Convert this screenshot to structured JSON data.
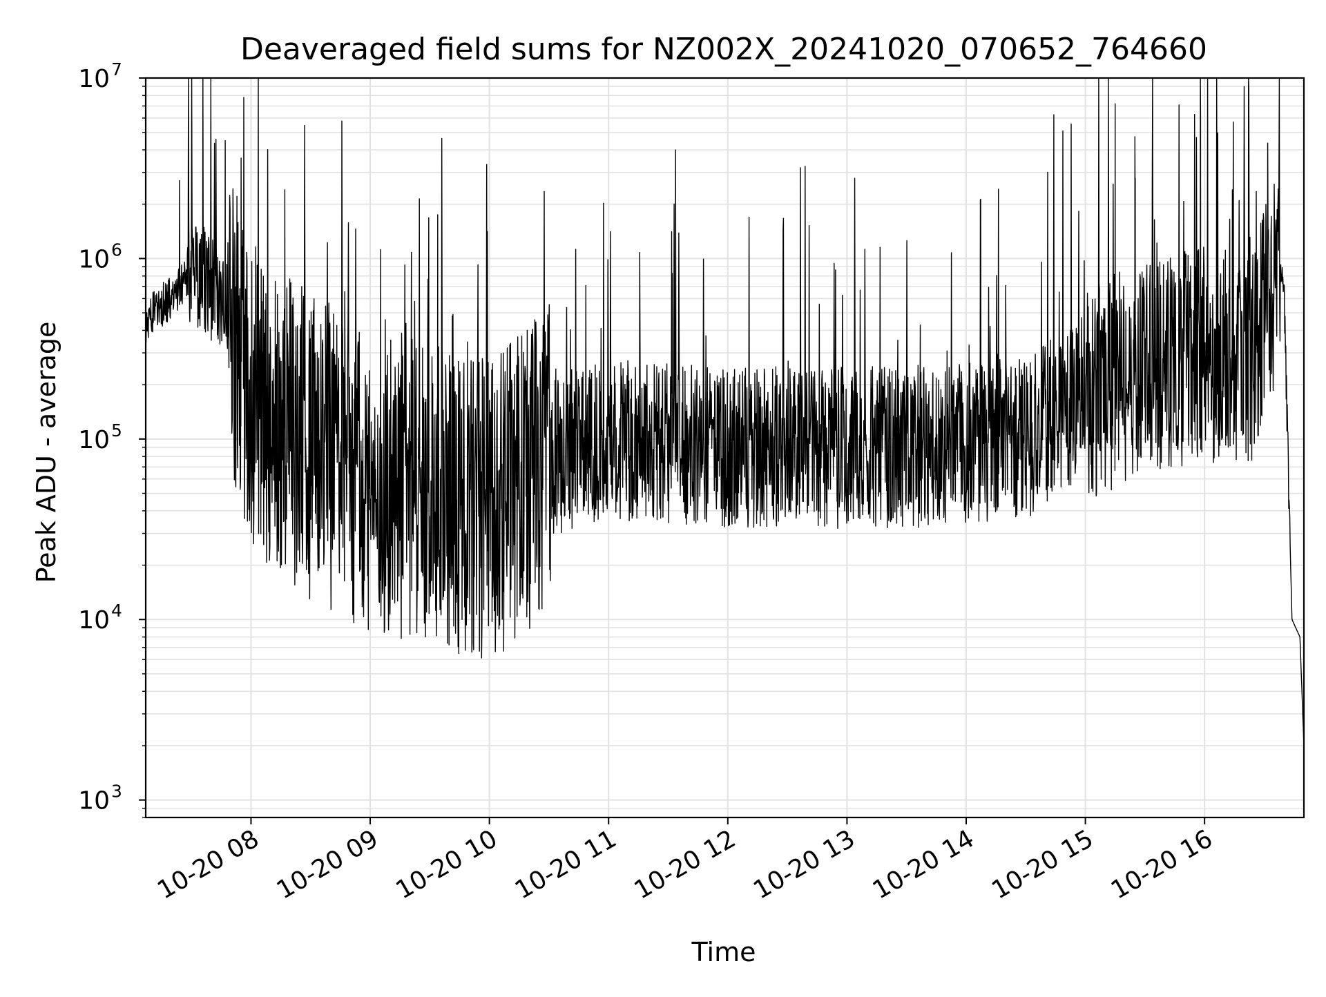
{
  "chart_data": {
    "type": "line",
    "title": "Deaveraged field sums for NZ002X_20241020_070652_764660",
    "xlabel": "Time",
    "ylabel": "Peak ADU - average",
    "yscale": "log",
    "xlim": [
      "2024-10-20T07:07",
      "2024-10-20T16:50"
    ],
    "ylim": [
      800,
      10000000
    ],
    "grid": true,
    "x_tick_labels": [
      "10-20 08",
      "10-20 09",
      "10-20 10",
      "10-20 11",
      "10-20 12",
      "10-20 13",
      "10-20 14",
      "10-20 15",
      "10-20 16"
    ],
    "x_tick_values": [
      "2024-10-20T08:00",
      "2024-10-20T09:00",
      "2024-10-20T10:00",
      "2024-10-20T11:00",
      "2024-10-20T12:00",
      "2024-10-20T13:00",
      "2024-10-20T14:00",
      "2024-10-20T15:00",
      "2024-10-20T16:00"
    ],
    "y_ticks": [
      {
        "value": 1000,
        "base": "10",
        "exp": "3"
      },
      {
        "value": 10000,
        "base": "10",
        "exp": "4"
      },
      {
        "value": 100000,
        "base": "10",
        "exp": "5"
      },
      {
        "value": 1000000,
        "base": "10",
        "exp": "6"
      },
      {
        "value": 10000000,
        "base": "10",
        "exp": "7"
      }
    ],
    "line_color": "#000000",
    "series": [
      {
        "x": [
          "2024-10-20T07:07",
          "2024-10-20T07:15",
          "2024-10-20T07:23",
          "2024-10-20T07:30",
          "2024-10-20T07:45",
          "2024-10-20T08:00",
          "2024-10-20T08:15",
          "2024-10-20T08:30",
          "2024-10-20T08:45",
          "2024-10-20T09:00",
          "2024-10-20T09:15",
          "2024-10-20T09:30",
          "2024-10-20T09:45",
          "2024-10-20T10:00",
          "2024-10-20T10:15",
          "2024-10-20T10:30",
          "2024-10-20T10:45",
          "2024-10-20T11:00",
          "2024-10-20T11:30",
          "2024-10-20T12:00",
          "2024-10-20T12:30",
          "2024-10-20T13:00",
          "2024-10-20T13:30",
          "2024-10-20T14:00",
          "2024-10-20T14:30",
          "2024-10-20T15:00",
          "2024-10-20T15:30",
          "2024-10-20T16:00",
          "2024-10-20T16:15",
          "2024-10-20T16:25",
          "2024-10-20T16:32",
          "2024-10-20T16:37",
          "2024-10-20T16:40",
          "2024-10-20T16:44",
          "2024-10-20T16:48",
          "2024-10-20T16:50"
        ],
        "y": [
          450000,
          550000,
          650000,
          900000,
          600000,
          180000,
          120000,
          90000,
          70000,
          60000,
          55000,
          50000,
          45000,
          40000,
          55000,
          80000,
          90000,
          100000,
          95000,
          90000,
          90000,
          90000,
          90000,
          95000,
          100000,
          180000,
          250000,
          300000,
          280000,
          300000,
          600000,
          850000,
          600000,
          10000,
          8000,
          2000
        ]
      }
    ],
    "spikes": [
      {
        "x": "2024-10-20T07:24",
        "y": 2700000
      },
      {
        "x": "2024-10-20T07:47",
        "y": 4500000
      },
      {
        "x": "2024-10-20T07:55",
        "y": 3600000
      },
      {
        "x": "2024-10-20T08:17",
        "y": 2400000
      },
      {
        "x": "2024-10-20T09:34",
        "y": 1750000
      },
      {
        "x": "2024-10-20T15:15",
        "y": 7200000
      },
      {
        "x": "2024-10-20T15:25",
        "y": 2600000
      },
      {
        "x": "2024-10-20T15:58",
        "y": 6200000
      },
      {
        "x": "2024-10-20T16:14",
        "y": 2400000
      },
      {
        "x": "2024-10-20T16:26",
        "y": 2350000
      }
    ]
  }
}
